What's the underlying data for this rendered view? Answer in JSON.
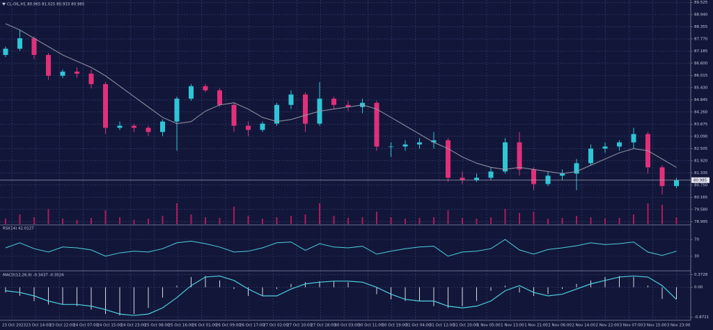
{
  "chart_data": {
    "type": "candlestick",
    "title": "CL-OIL,H1 80.965 81.025 80.933 80.985",
    "open": [
      87.0,
      87.3,
      87.8,
      87.0,
      86.0,
      86.2,
      86.1,
      85.6,
      83.5,
      83.6,
      83.5,
      83.3,
      83.8,
      84.9,
      85.5,
      85.3,
      84.6,
      83.6,
      83.4,
      83.7,
      84.6,
      85.1,
      83.7,
      84.9,
      84.6,
      84.5,
      84.7,
      82.6,
      82.6,
      82.7,
      82.8,
      82.9,
      81.1,
      81.0,
      81.1,
      81.4,
      82.8,
      81.5,
      80.8,
      81.2,
      81.3,
      81.8,
      82.5,
      82.6,
      82.8,
      83.2,
      81.6,
      80.7
    ],
    "high": [
      87.4,
      88.2,
      87.9,
      87.1,
      86.3,
      86.4,
      86.3,
      85.7,
      83.8,
      83.7,
      83.6,
      83.9,
      85.0,
      85.6,
      85.6,
      85.4,
      84.7,
      83.8,
      83.8,
      84.7,
      85.3,
      85.2,
      85.7,
      85.0,
      84.8,
      84.9,
      84.8,
      82.8,
      82.9,
      83.0,
      83.3,
      83.0,
      81.4,
      81.3,
      81.6,
      83.0,
      83.3,
      81.6,
      81.4,
      81.5,
      82.0,
      82.7,
      82.8,
      82.9,
      83.5,
      83.3,
      81.7,
      81.1
    ],
    "low": [
      86.9,
      87.2,
      86.8,
      85.8,
      85.9,
      85.9,
      85.4,
      83.2,
      83.4,
      83.3,
      83.1,
      83.1,
      82.4,
      84.8,
      85.2,
      84.5,
      83.3,
      83.1,
      83.3,
      83.6,
      84.4,
      83.3,
      83.6,
      84.4,
      84.3,
      84.2,
      82.4,
      82.1,
      82.4,
      82.5,
      82.5,
      80.9,
      80.8,
      80.9,
      81.0,
      81.3,
      81.2,
      80.5,
      80.7,
      81.0,
      80.5,
      81.7,
      82.3,
      82.4,
      82.5,
      81.3,
      80.3,
      80.6
    ],
    "close": [
      87.3,
      87.8,
      87.0,
      86.0,
      86.2,
      86.1,
      85.6,
      83.5,
      83.6,
      83.5,
      83.3,
      83.8,
      84.9,
      85.5,
      85.3,
      84.6,
      83.6,
      83.4,
      83.7,
      84.6,
      85.1,
      83.7,
      84.9,
      84.6,
      84.5,
      84.7,
      82.6,
      82.6,
      82.7,
      82.8,
      82.9,
      81.1,
      81.0,
      81.1,
      81.4,
      82.8,
      81.5,
      80.8,
      81.2,
      81.3,
      81.8,
      82.5,
      82.6,
      82.8,
      83.2,
      81.6,
      80.7,
      80.985
    ],
    "colors": {
      "up": "#2ec6d6",
      "down": "#e0307a"
    },
    "ma": {
      "color": "#9a9aa8",
      "values": [
        88.5,
        88.2,
        87.8,
        87.4,
        87.0,
        86.7,
        86.4,
        86.0,
        85.5,
        85.0,
        84.5,
        84.0,
        83.7,
        83.8,
        84.3,
        84.6,
        84.7,
        84.4,
        84.0,
        83.8,
        83.9,
        84.1,
        84.3,
        84.4,
        84.5,
        84.6,
        84.4,
        84.0,
        83.6,
        83.2,
        82.8,
        82.5,
        82.1,
        81.8,
        81.6,
        81.5,
        81.6,
        81.5,
        81.4,
        81.3,
        81.4,
        81.7,
        82.0,
        82.3,
        82.5,
        82.4,
        82.0,
        81.6
      ]
    },
    "volume": {
      "color": "#b0185a",
      "values": [
        8,
        14,
        10,
        22,
        8,
        6,
        9,
        20,
        10,
        6,
        8,
        12,
        30,
        14,
        10,
        9,
        25,
        12,
        8,
        10,
        12,
        14,
        30,
        12,
        9,
        10,
        18,
        10,
        8,
        9,
        10,
        20,
        9,
        8,
        10,
        22,
        16,
        18,
        8,
        9,
        12,
        10,
        8,
        9,
        14,
        30,
        28,
        10
      ]
    },
    "last_price": 80.985,
    "ylim": [
      78.87,
      89.64
    ],
    "yticks": [
      89.525,
      {
        "value": 88.94,
        "label": "88.940"
      },
      88.355,
      {
        "value": 87.77,
        "label": "87.770"
      },
      87.185,
      {
        "value": 86.6,
        "label": "86.600"
      },
      86.015,
      {
        "value": 85.43,
        "label": "85.430"
      },
      84.845,
      {
        "value": 84.26,
        "label": "84.260"
      },
      83.675,
      {
        "value": 83.09,
        "label": "83.090"
      },
      82.505,
      {
        "value": 81.92,
        "label": "81.920"
      },
      81.335,
      {
        "value": 80.75,
        "label": "80.750"
      },
      80.165,
      {
        "value": 79.58,
        "label": "79.580"
      },
      78.995
    ],
    "grid": true,
    "time_labels": [
      "23 Oct 2023",
      "23 Oct 14:00",
      "23 Oct 22:00",
      "24 Oct 07:00",
      "24 Oct 15:00",
      "24 Oct 23:00",
      "25 Oct 08:00",
      "25 Oct 16:00",
      "26 Oct 01:00",
      "26 Oct 09:00",
      "26 Oct 17:00",
      "27 Oct 02:00",
      "27 Oct 10:00",
      "27 Oct 18:00",
      "30 Oct 03:00",
      "30 Oct 11:00",
      "30 Oct 19:00",
      "31 Oct 04:00",
      "31 Oct 12:00",
      "31 Oct 20:00",
      "1 Nov 05:00",
      "1 Nov 13:00",
      "1 Nov 21:00",
      "2 Nov 06:00",
      "2 Nov 14:00",
      "2 Nov 22:00",
      "3 Nov 07:00",
      "3 Nov 15:00",
      "3 Nov 23:00"
    ],
    "rsi": {
      "label": "RSI(14) 42.0127",
      "color": "#4fd0e0",
      "values": [
        50,
        62,
        48,
        40,
        52,
        50,
        45,
        30,
        38,
        42,
        40,
        48,
        62,
        66,
        60,
        52,
        40,
        42,
        50,
        62,
        64,
        44,
        60,
        52,
        50,
        54,
        35,
        42,
        48,
        52,
        54,
        30,
        40,
        42,
        48,
        70,
        45,
        35,
        46,
        50,
        55,
        62,
        58,
        60,
        64,
        40,
        32,
        42
      ],
      "ylim": [
        0,
        100
      ],
      "yticks": [
        70,
        30
      ]
    },
    "macd": {
      "label": "MACD(12,26,9) -0.3437 -0.3524",
      "color": "#4fd0e0",
      "hist_color": "#d8d8e0",
      "histogram": [
        -0.15,
        -0.25,
        -0.4,
        -0.5,
        -0.5,
        -0.55,
        -0.65,
        -0.78,
        -0.82,
        -0.78,
        -0.6,
        -0.3,
        0.05,
        0.3,
        0.33,
        0.2,
        -0.05,
        -0.25,
        -0.25,
        -0.05,
        0.1,
        0.15,
        0.18,
        0.18,
        0.15,
        0.0,
        -0.2,
        -0.35,
        -0.4,
        -0.4,
        -0.55,
        -0.6,
        -0.55,
        -0.4,
        -0.1,
        0.05,
        -0.15,
        -0.25,
        -0.2,
        -0.05,
        0.1,
        0.2,
        0.3,
        0.33,
        0.3,
        0.05,
        -0.34,
        -0.3437
      ],
      "signal": [
        -0.1,
        -0.15,
        -0.25,
        -0.4,
        -0.5,
        -0.5,
        -0.55,
        -0.65,
        -0.78,
        -0.82,
        -0.78,
        -0.6,
        -0.3,
        0.05,
        0.3,
        0.33,
        0.2,
        -0.05,
        -0.25,
        -0.25,
        -0.05,
        0.1,
        0.15,
        0.18,
        0.18,
        0.15,
        0.0,
        -0.2,
        -0.35,
        -0.4,
        -0.4,
        -0.55,
        -0.6,
        -0.55,
        -0.4,
        -0.1,
        0.05,
        -0.15,
        -0.25,
        -0.2,
        -0.05,
        0.1,
        0.2,
        0.3,
        0.33,
        0.3,
        0.05,
        -0.3524
      ],
      "ylim": [
        -0.92,
        0.42
      ],
      "yticks": [
        0.3728,
        {
          "value": 0,
          "label": "0.00"
        },
        -0.8721
      ]
    }
  }
}
